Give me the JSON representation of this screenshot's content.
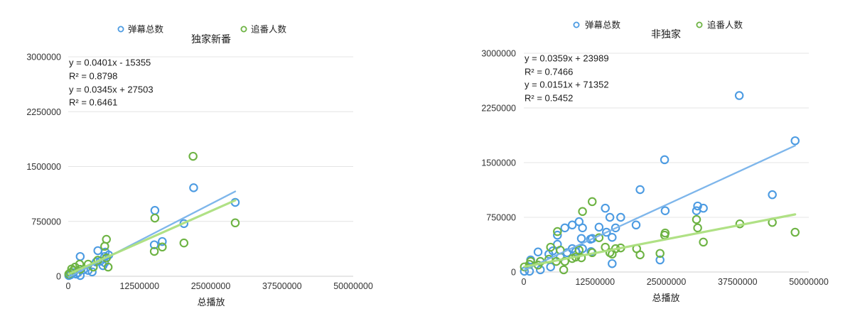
{
  "chart_data": [
    {
      "type": "scatter",
      "title": "独家新番",
      "xlabel": "总播放",
      "xlim": [
        0,
        50000000
      ],
      "ylim": [
        0,
        3000000
      ],
      "xticks": [
        0,
        12500000,
        25000000,
        37500000,
        50000000
      ],
      "yticks": [
        0,
        750000,
        1500000,
        2250000,
        3000000
      ],
      "grid": true,
      "legend": "top",
      "series": [
        {
          "name": "弹幕总数",
          "color": "#4c9be2",
          "trendline_color": "#78b3ea",
          "equation": "y = 0.0401x - 15355",
          "r_squared": "R² = 0.8798",
          "points": [
            [
              22000000,
              1210000
            ],
            [
              29300000,
              1010000
            ],
            [
              15200000,
              900000
            ],
            [
              20300000,
              720000
            ],
            [
              16500000,
              475000
            ],
            [
              15100000,
              430000
            ],
            [
              7100000,
              290000
            ],
            [
              6500000,
              330000
            ],
            [
              5200000,
              350000
            ],
            [
              6400000,
              270000
            ],
            [
              2100000,
              270000
            ],
            [
              4900000,
              195000
            ],
            [
              5600000,
              205000
            ],
            [
              6400000,
              185000
            ],
            [
              6100000,
              145000
            ],
            [
              4200000,
              60000
            ],
            [
              3500000,
              80000
            ],
            [
              2700000,
              90000
            ],
            [
              2100000,
              10000
            ],
            [
              1700000,
              50000
            ],
            [
              1400000,
              30000
            ],
            [
              900000,
              50000
            ],
            [
              400000,
              20000
            ],
            [
              100000,
              10000
            ]
          ]
        },
        {
          "name": "追番人数",
          "color": "#6db343",
          "trendline_color": "#ace07f",
          "equation": "y = 0.0345x + 27503",
          "r_squared": "R² = 0.6461",
          "points": [
            [
              21900000,
              1640000
            ],
            [
              15200000,
              795000
            ],
            [
              29300000,
              730000
            ],
            [
              20300000,
              455000
            ],
            [
              16500000,
              400000
            ],
            [
              15100000,
              340000
            ],
            [
              6700000,
              505000
            ],
            [
              6400000,
              410000
            ],
            [
              6700000,
              250000
            ],
            [
              7000000,
              125000
            ],
            [
              5200000,
              220000
            ],
            [
              4400000,
              125000
            ],
            [
              3500000,
              165000
            ],
            [
              2000000,
              165000
            ],
            [
              1200000,
              125000
            ],
            [
              2100000,
              95000
            ],
            [
              900000,
              80000
            ],
            [
              600000,
              100000
            ],
            [
              400000,
              50000
            ],
            [
              100000,
              30000
            ]
          ]
        }
      ]
    },
    {
      "type": "scatter",
      "title": "非独家",
      "xlabel": "总播放",
      "xlim": [
        0,
        50000000
      ],
      "ylim": [
        0,
        3000000
      ],
      "xticks": [
        0,
        12500000,
        25000000,
        37500000,
        50000000
      ],
      "yticks": [
        0,
        750000,
        1500000,
        2250000,
        3000000
      ],
      "grid": true,
      "legend": "top",
      "series": [
        {
          "name": "弹幕总数",
          "color": "#4c9be2",
          "trendline_color": "#78b3ea",
          "equation": "y = 0.0359x + 23989",
          "r_squared": "R² = 0.7466",
          "points": [
            [
              37800000,
              2420000
            ],
            [
              47600000,
              1800000
            ],
            [
              24700000,
              1540000
            ],
            [
              20400000,
              1130000
            ],
            [
              43600000,
              1060000
            ],
            [
              30500000,
              905000
            ],
            [
              31500000,
              875000
            ],
            [
              30300000,
              840000
            ],
            [
              24800000,
              840000
            ],
            [
              14300000,
              875000
            ],
            [
              15100000,
              750000
            ],
            [
              17000000,
              750000
            ],
            [
              19700000,
              645000
            ],
            [
              9700000,
              690000
            ],
            [
              8500000,
              645000
            ],
            [
              10300000,
              605000
            ],
            [
              7200000,
              605000
            ],
            [
              16100000,
              605000
            ],
            [
              13200000,
              615000
            ],
            [
              14500000,
              545000
            ],
            [
              12000000,
              460000
            ],
            [
              10100000,
              460000
            ],
            [
              11700000,
              450000
            ],
            [
              15500000,
              475000
            ],
            [
              5900000,
              505000
            ],
            [
              5900000,
              380000
            ],
            [
              8500000,
              320000
            ],
            [
              9100000,
              280000
            ],
            [
              10300000,
              320000
            ],
            [
              11800000,
              280000
            ],
            [
              7600000,
              265000
            ],
            [
              5100000,
              290000
            ],
            [
              4400000,
              245000
            ],
            [
              6400000,
              205000
            ],
            [
              2500000,
              275000
            ],
            [
              1200000,
              165000
            ],
            [
              2900000,
              145000
            ],
            [
              4700000,
              70000
            ],
            [
              2900000,
              30000
            ],
            [
              1000000,
              10000
            ],
            [
              100000,
              10000
            ],
            [
              15500000,
              115000
            ],
            [
              23900000,
              165000
            ]
          ]
        },
        {
          "name": "追番人数",
          "color": "#6db343",
          "trendline_color": "#ace07f",
          "equation": "y = 0.0151x + 71352",
          "r_squared": "R² = 0.5452",
          "points": [
            [
              37900000,
              660000
            ],
            [
              43600000,
              680000
            ],
            [
              47600000,
              545000
            ],
            [
              30300000,
              720000
            ],
            [
              30500000,
              605000
            ],
            [
              31500000,
              410000
            ],
            [
              24800000,
              535000
            ],
            [
              24700000,
              505000
            ],
            [
              19800000,
              320000
            ],
            [
              20400000,
              235000
            ],
            [
              23900000,
              255000
            ],
            [
              12000000,
              965000
            ],
            [
              10300000,
              830000
            ],
            [
              14300000,
              340000
            ],
            [
              16100000,
              320000
            ],
            [
              17000000,
              330000
            ],
            [
              15100000,
              265000
            ],
            [
              15500000,
              245000
            ],
            [
              13200000,
              470000
            ],
            [
              12000000,
              265000
            ],
            [
              10100000,
              195000
            ],
            [
              9700000,
              300000
            ],
            [
              9100000,
              205000
            ],
            [
              8500000,
              185000
            ],
            [
              7200000,
              145000
            ],
            [
              7000000,
              30000
            ],
            [
              5900000,
              555000
            ],
            [
              4700000,
              340000
            ],
            [
              6400000,
              300000
            ],
            [
              5700000,
              145000
            ],
            [
              4400000,
              175000
            ],
            [
              2900000,
              145000
            ],
            [
              2500000,
              95000
            ],
            [
              1200000,
              145000
            ],
            [
              1000000,
              105000
            ],
            [
              100000,
              70000
            ]
          ]
        }
      ]
    }
  ]
}
